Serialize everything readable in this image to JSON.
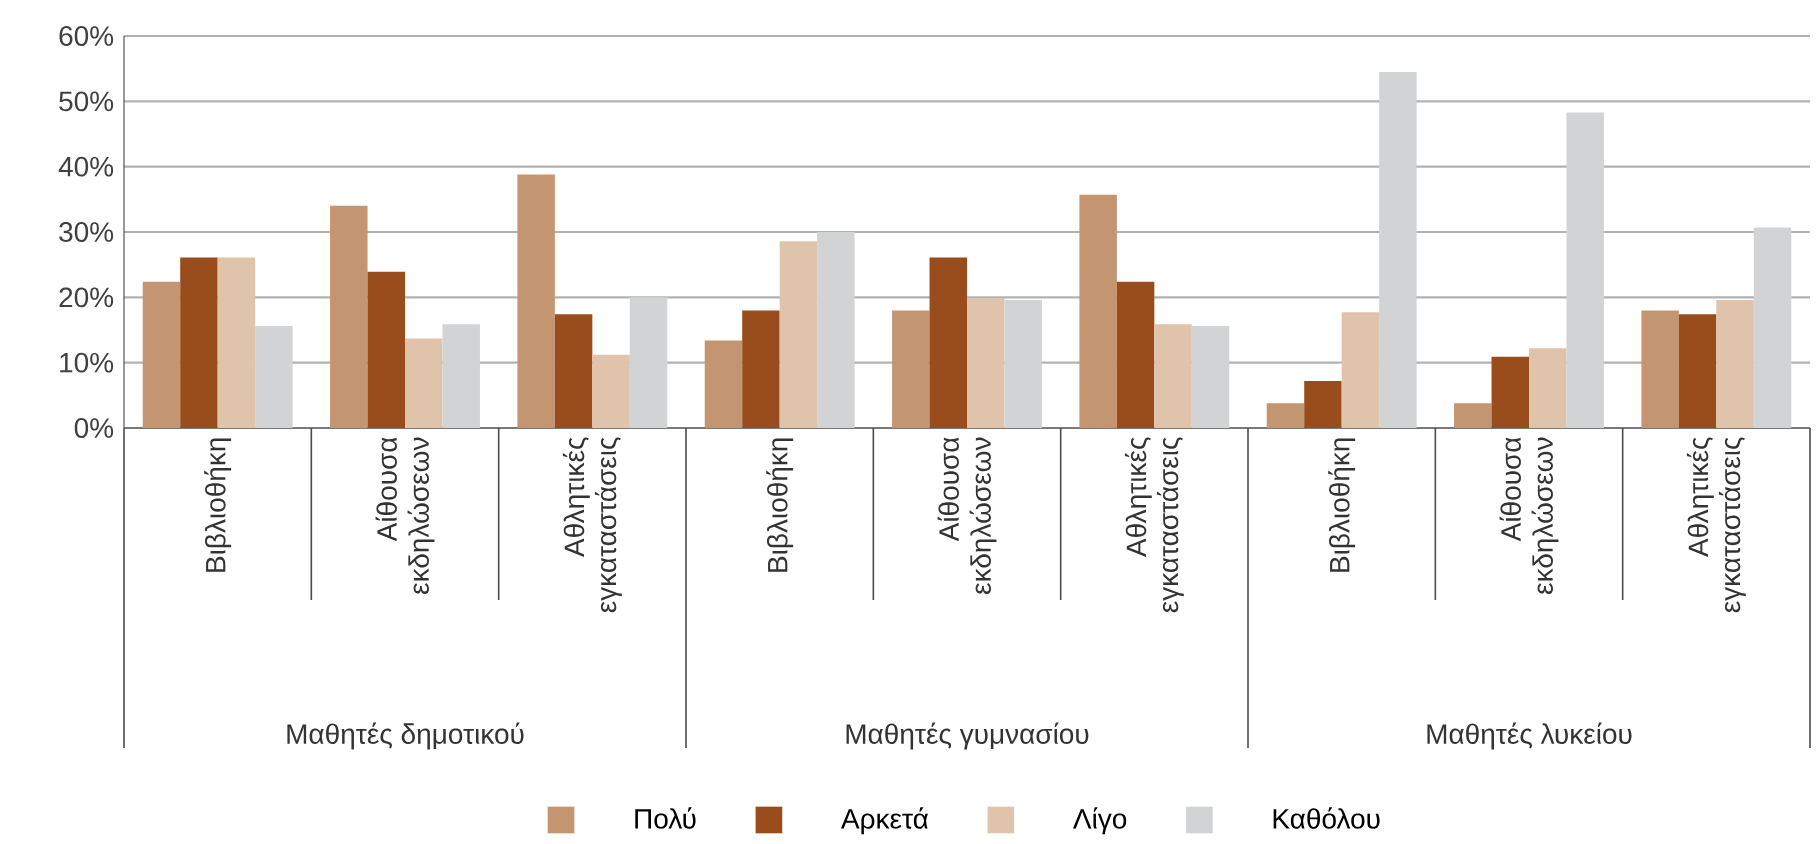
{
  "chart_data": {
    "type": "bar",
    "categories": [
      "Βιβλιοθήκη",
      "Αίθουσα εκδηλώσεων",
      "Αθλητικές εγκαταστάσεις",
      "Βιβλιοθήκη",
      "Αίθουσα εκδηλώσεων",
      "Αθλητικές εγκαταστάσεις",
      "Βιβλιοθήκη",
      "Αίθουσα εκδηλώσεων",
      "Αθλητικές εγκαταστάσεις"
    ],
    "series": [
      {
        "name": "Πολύ",
        "color": "#c49571",
        "values": [
          22.4,
          34.0,
          38.8,
          13.4,
          18.0,
          35.7,
          3.8,
          3.8,
          18.0
        ]
      },
      {
        "name": "Αρκετά",
        "color": "#9a4d1c",
        "values": [
          26.1,
          23.9,
          17.4,
          18.0,
          26.1,
          22.4,
          7.2,
          10.9,
          17.4
        ]
      },
      {
        "name": "Λίγο",
        "color": "#e0c3ab",
        "values": [
          26.1,
          13.7,
          11.2,
          28.6,
          19.9,
          15.9,
          17.7,
          12.2,
          19.6
        ]
      },
      {
        "name": "Καθόλου",
        "color": "#d2d3d5",
        "values": [
          15.6,
          15.9,
          20.0,
          30.0,
          19.6,
          15.6,
          54.5,
          48.3,
          30.7
        ]
      }
    ],
    "ylim": [
      0,
      60
    ],
    "yticks": [
      {
        "value": 0,
        "label": "0%"
      },
      {
        "value": 10,
        "label": "10%"
      },
      {
        "value": 20,
        "label": "20%"
      },
      {
        "value": 30,
        "label": "30%"
      },
      {
        "value": 40,
        "label": "40%"
      },
      {
        "value": 50,
        "label": "50%"
      },
      {
        "value": 60,
        "label": "60%"
      }
    ],
    "annotations": [
      "Μαθητές δημοτικού",
      "Μαθητές γυμνασίου",
      "Μαθητές λυκείου"
    ],
    "grid": "y",
    "legend": "bottom"
  }
}
